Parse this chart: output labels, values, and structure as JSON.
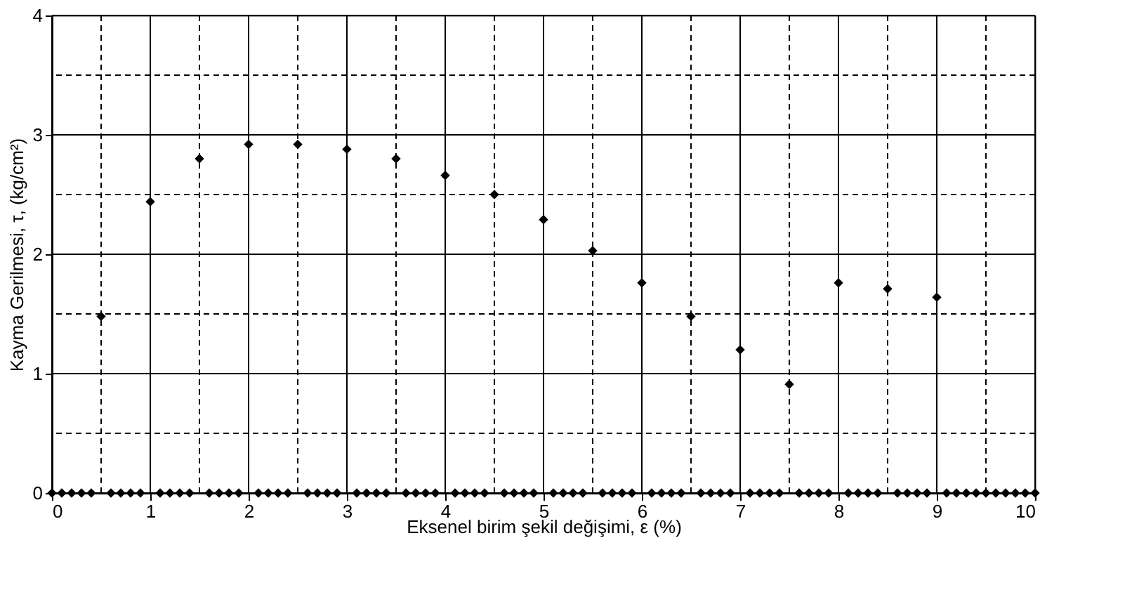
{
  "chart_data": {
    "type": "scatter",
    "xlabel": "Eksenel birim şekil değişimi, ε (%)",
    "ylabel": "Kayma Gerilmesi, τ, (kg/cm²)",
    "xlim": [
      0,
      10
    ],
    "ylim": [
      0,
      4
    ],
    "xticks": [
      0,
      {
        "value": 0.5,
        "label": null
      },
      1,
      {
        "value": 1.5,
        "label": null
      },
      2,
      {
        "value": 2.5,
        "label": null
      },
      3,
      {
        "value": 3.5,
        "label": null
      },
      4,
      {
        "value": 4.5,
        "label": null
      },
      5,
      {
        "value": 5.5,
        "label": null
      },
      6,
      {
        "value": 6.5,
        "label": null
      },
      7,
      {
        "value": 7.5,
        "label": null
      },
      8,
      {
        "value": 8.5,
        "label": null
      },
      9,
      {
        "value": 9.5,
        "label": null
      },
      10
    ],
    "yticks": [
      0,
      {
        "value": 0.5,
        "label": null
      },
      1,
      {
        "value": 1.5,
        "label": null
      },
      2,
      {
        "value": 2.5,
        "label": null
      },
      3,
      {
        "value": 3.5,
        "label": null
      },
      4
    ],
    "grid": true,
    "marker": "diamond",
    "series": [
      {
        "color": "#000000",
        "x": [
          0,
          0.1,
          0.2,
          0.3,
          0.4,
          0.5,
          0.6,
          0.7,
          0.8,
          0.9,
          1,
          1.1,
          1.2,
          1.3,
          1.4,
          1.5,
          1.6,
          1.7,
          1.8,
          1.9,
          2,
          2.1,
          2.2,
          2.3,
          2.4,
          2.5,
          2.6,
          2.7,
          2.8,
          2.9,
          3,
          3.1,
          3.2,
          3.3,
          3.4,
          3.5,
          3.6,
          3.7,
          3.8,
          3.9,
          4,
          4.1,
          4.2,
          4.3,
          4.4,
          4.5,
          4.6,
          4.7,
          4.8,
          4.9,
          5,
          5.1,
          5.2,
          5.3,
          5.4,
          5.5,
          5.6,
          5.7,
          5.8,
          5.9,
          6,
          6.1,
          6.2,
          6.3,
          6.4,
          6.5,
          6.6,
          6.7,
          6.8,
          6.9,
          7,
          7.1,
          7.2,
          7.3,
          7.4,
          7.5,
          7.6,
          7.7,
          7.8,
          7.9,
          8,
          8.1,
          8.2,
          8.3,
          8.4,
          8.5,
          8.6,
          8.7,
          8.8,
          8.9,
          9,
          9.1,
          9.2,
          9.3,
          9.4,
          9.5,
          9.6,
          9.7,
          9.8,
          9.9,
          10
        ],
        "values": [
          0,
          0,
          0,
          0,
          0,
          1.48,
          0,
          0,
          0,
          0,
          2.44,
          0,
          0,
          0,
          0,
          2.8,
          0,
          0,
          0,
          0,
          2.92,
          0,
          0,
          0,
          0,
          2.92,
          0,
          0,
          0,
          0,
          2.88,
          0,
          0,
          0,
          0,
          2.8,
          0,
          0,
          0,
          0,
          2.66,
          0,
          0,
          0,
          0,
          2.5,
          0,
          0,
          0,
          0,
          2.29,
          0,
          0,
          0,
          0,
          2.03,
          0,
          0,
          0,
          0,
          1.76,
          0,
          0,
          0,
          0,
          1.48,
          0,
          0,
          0,
          0,
          1.2,
          0,
          0,
          0,
          0,
          0.91,
          0,
          0,
          0,
          0,
          1.76,
          0,
          0,
          0,
          0,
          1.71,
          0,
          0,
          0,
          0,
          1.64,
          0,
          0,
          0,
          0,
          0,
          0,
          0,
          0,
          0,
          0
        ]
      }
    ]
  }
}
